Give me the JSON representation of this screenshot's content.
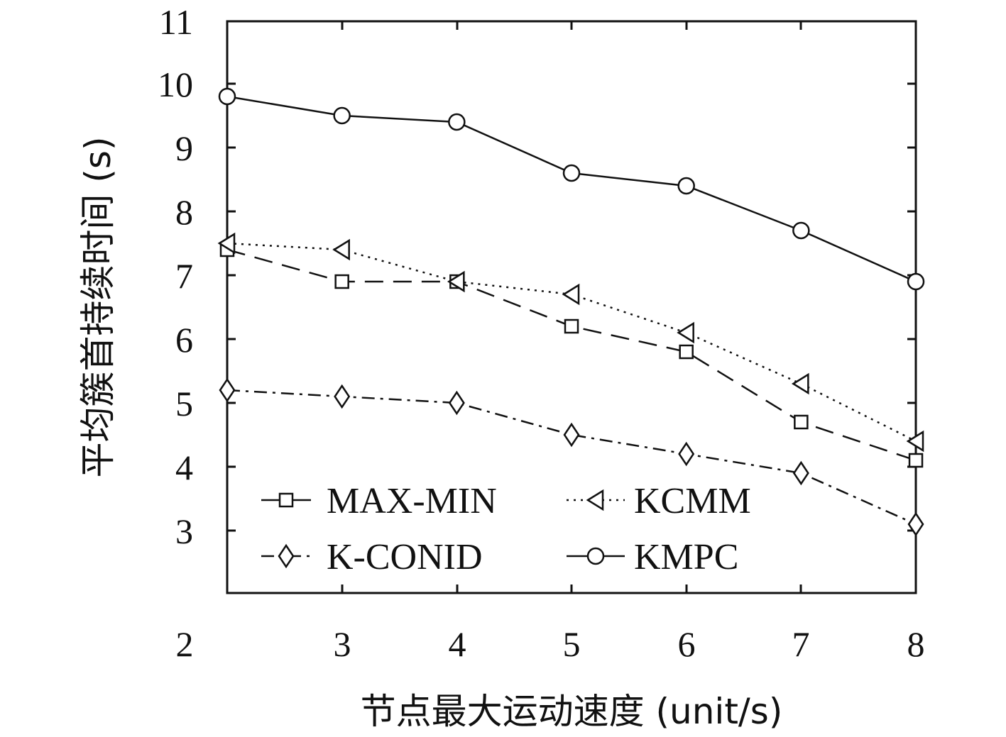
{
  "chart_data": {
    "type": "line",
    "xlabel": "节点最大运动速度 (unit/s)",
    "ylabel": "平均簇首持续时间 (s)",
    "xlim": [
      2,
      8
    ],
    "ylim": [
      2,
      11
    ],
    "x_tick_labels": [
      "2",
      "3",
      "4",
      "5",
      "6",
      "7",
      "8"
    ],
    "y_tick_labels": [
      "3",
      "4",
      "5",
      "6",
      "7",
      "8",
      "9",
      "10",
      "11"
    ],
    "grid": false,
    "legend_position": "bottom-left, inside plot, two columns",
    "x": [
      2,
      3,
      4,
      5,
      6,
      7,
      8
    ],
    "series": [
      {
        "name": "MAX-MIN",
        "marker": "square",
        "dash": "long-dash",
        "values": [
          7.4,
          6.9,
          6.9,
          6.2,
          5.8,
          4.7,
          4.1
        ]
      },
      {
        "name": "KCMM",
        "marker": "triangle-left",
        "dash": "dotted",
        "values": [
          7.5,
          7.4,
          6.9,
          6.7,
          6.1,
          5.3,
          4.4
        ]
      },
      {
        "name": "K-CONID",
        "marker": "diamond",
        "dash": "dash-dot",
        "values": [
          5.2,
          5.1,
          5.0,
          4.5,
          4.2,
          3.9,
          3.1
        ]
      },
      {
        "name": "KMPC",
        "marker": "circle",
        "dash": "solid",
        "values": [
          9.8,
          9.5,
          9.4,
          8.6,
          8.4,
          7.7,
          6.9
        ]
      }
    ]
  }
}
